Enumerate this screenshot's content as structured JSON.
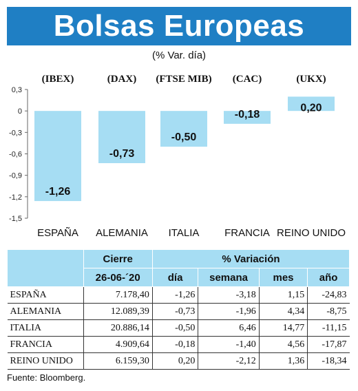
{
  "title": "Bolsas Europeas",
  "subtitle": "(% Var. día)",
  "colors": {
    "title_bg": "#1f7fc4",
    "bar": "#a6ddf3",
    "header_bg": "#a6ddf3"
  },
  "chart_data": {
    "type": "bar",
    "categories": [
      "ESPAÑA",
      "ALEMANIA",
      "ITALIA",
      "FRANCIA",
      "REINO UNIDO"
    ],
    "index_labels": [
      "(IBEX)",
      "(DAX)",
      "(FTSE MIB)",
      "(CAC)",
      "(UKX)"
    ],
    "values": [
      -1.26,
      -0.73,
      -0.5,
      -0.18,
      0.2
    ],
    "value_labels": [
      "-1,26",
      "-0,73",
      "-0,50",
      "-0,18",
      "0,20"
    ],
    "ylim": [
      -1.5,
      0.3
    ],
    "yticks": [
      0.3,
      0,
      -0.3,
      -0.6,
      -0.9,
      -1.2,
      -1.5
    ],
    "ytick_labels": [
      "0,3",
      "0",
      "-0,3",
      "-0,6",
      "-0,9",
      "-1,2",
      "-1,5"
    ],
    "grid": false,
    "title": "",
    "xlabel": "",
    "ylabel": ""
  },
  "table": {
    "group_headers": {
      "cierre": "Cierre",
      "variacion": "% Variación"
    },
    "sub_headers": [
      "26-06-´20",
      "día",
      "semana",
      "mes",
      "año"
    ],
    "rows": [
      {
        "country": "ESPAÑA",
        "cierre": "7.178,40",
        "dia": "-1,26",
        "semana": "-3,18",
        "mes": "1,15",
        "anio": "-24,83"
      },
      {
        "country": "ALEMANIA",
        "cierre": "12.089,39",
        "dia": "-0,73",
        "semana": "-1,96",
        "mes": "4,34",
        "anio": "-8,75"
      },
      {
        "country": "ITALIA",
        "cierre": "20.886,14",
        "dia": "-0,50",
        "semana": "6,46",
        "mes": "14,77",
        "anio": "-11,15"
      },
      {
        "country": "FRANCIA",
        "cierre": "4.909,64",
        "dia": "-0,18",
        "semana": "-1,40",
        "mes": "4,56",
        "anio": "-17,87"
      },
      {
        "country": "REINO UNIDO",
        "cierre": "6.159,30",
        "dia": "0,20",
        "semana": "-2,12",
        "mes": "1,36",
        "anio": "-18,34"
      }
    ]
  },
  "source": "Fuente: Bloomberg."
}
